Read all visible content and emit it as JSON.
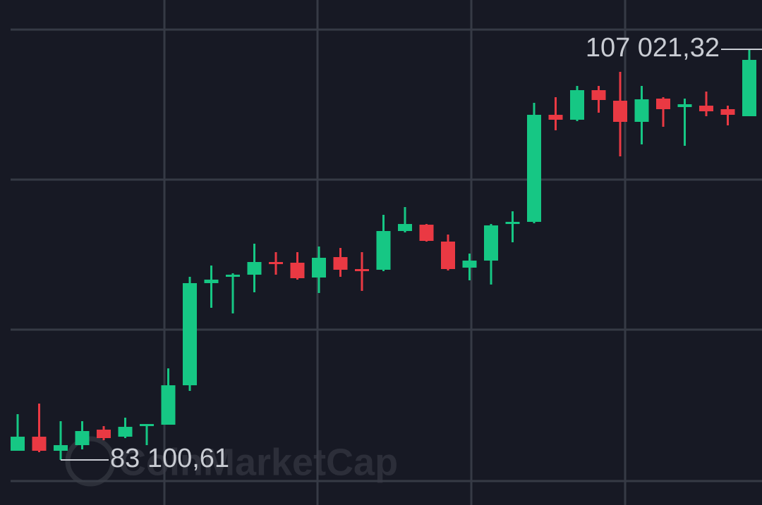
{
  "chart_data": {
    "type": "candlestick",
    "watermark": "CoinMarketCap",
    "high_label": "107 021,32",
    "low_label": "83 100,61",
    "up_color": "#16c784",
    "down_color": "#ea3943",
    "ylim": [
      80475,
      109893
    ],
    "categories": [
      null,
      null,
      null,
      null,
      null,
      null,
      null,
      null,
      null,
      null,
      null,
      null,
      null,
      null,
      null,
      null,
      null,
      null,
      null,
      null,
      null,
      null,
      null,
      null,
      null,
      null,
      null,
      null,
      null,
      null,
      null,
      null,
      null,
      null,
      null
    ],
    "open": [
      83634,
      84454,
      83634,
      83962,
      84865,
      84454,
      85070,
      85152,
      87450,
      93399,
      93768,
      93891,
      94630,
      94589,
      93727,
      94917,
      94220,
      94179,
      96435,
      96804,
      95820,
      94302,
      94712,
      96845,
      96969,
      103205,
      102918,
      104641,
      104026,
      102795,
      104149,
      103656,
      103738,
      103533,
      103123
    ],
    "high": [
      85767,
      86383,
      85357,
      85357,
      85070,
      85562,
      85193,
      88434,
      93768,
      94425,
      93973,
      95697,
      95204,
      95204,
      95532,
      95450,
      95204,
      97379,
      97830,
      96845,
      96230,
      95122,
      96845,
      97584,
      103903,
      104231,
      104887,
      104887,
      105708,
      104887,
      104231,
      104149,
      104559,
      103738,
      107021.32
    ],
    "low": [
      83634,
      83552,
      83100.61,
      83716,
      84249,
      84372,
      83962,
      85152,
      87121,
      91963,
      91635,
      92866,
      93891,
      93604,
      92825,
      93768,
      92948,
      94096,
      96353,
      95820,
      94137,
      93563,
      93317,
      95779,
      96886,
      102302,
      102836,
      103328,
      100784,
      101482,
      102508,
      101400,
      103123,
      102590,
      103123
    ],
    "close": [
      84454,
      83634,
      83962,
      84783,
      84372,
      85029,
      85193,
      87450,
      93399,
      93604,
      93891,
      94630,
      94507,
      93686,
      94876,
      94179,
      94096,
      96435,
      96845,
      95861,
      94220,
      94712,
      96763,
      96969,
      103205,
      102918,
      104641,
      104067,
      102795,
      104108,
      103533,
      103821,
      103410,
      103205,
      106405
    ]
  }
}
